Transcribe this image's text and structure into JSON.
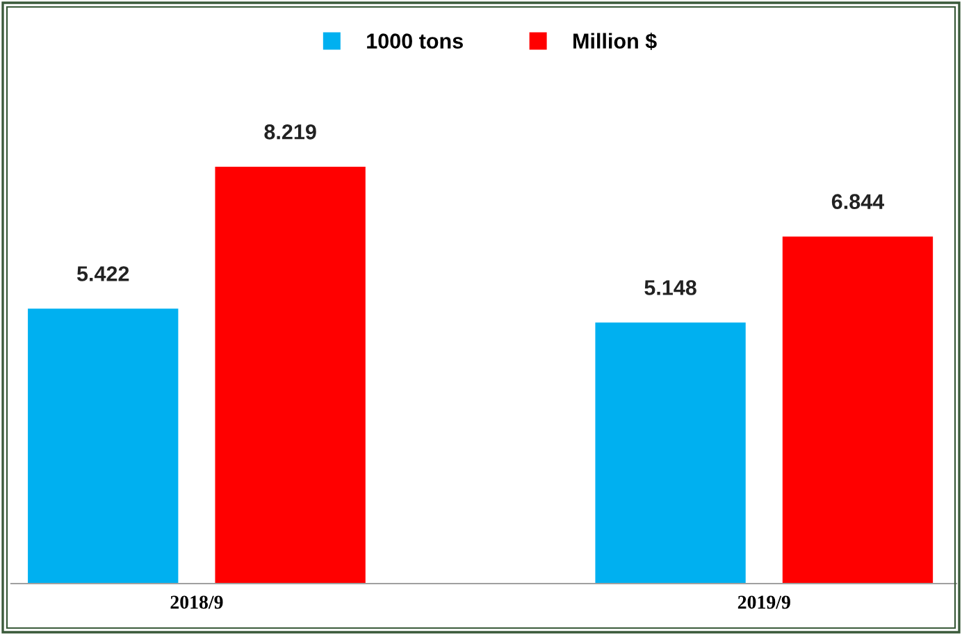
{
  "chart_data": {
    "type": "bar",
    "categories": [
      "2018/9",
      "2019/9"
    ],
    "series": [
      {
        "name": "1000 tons",
        "color": "#00b0f0",
        "values": [
          5.422,
          5.148
        ]
      },
      {
        "name": "Million $",
        "color": "#ff0000",
        "values": [
          8.219,
          6.844
        ]
      }
    ],
    "data_labels": true,
    "legend": "top",
    "grid": false,
    "tick_labels": "x"
  }
}
